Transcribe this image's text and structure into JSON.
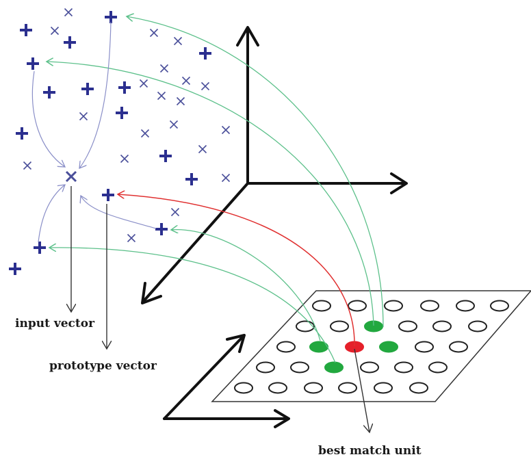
{
  "labels": {
    "input_vector": "input vector",
    "prototype_vector": "prototype vector",
    "best_match_unit": "best match unit"
  },
  "colors": {
    "plus_marker": "#2b2f8f",
    "cross_marker": "#4a4f9a",
    "axis": "#111111",
    "green_arrow": "#5cc08a",
    "red_arrow": "#e03030",
    "neighbor_unit": "#22a83f",
    "bmu_unit": "#e5202a",
    "pull_arrow": "#8a8fc8"
  },
  "icons": {
    "plus": "plus-marker",
    "cross": "cross-marker"
  }
}
